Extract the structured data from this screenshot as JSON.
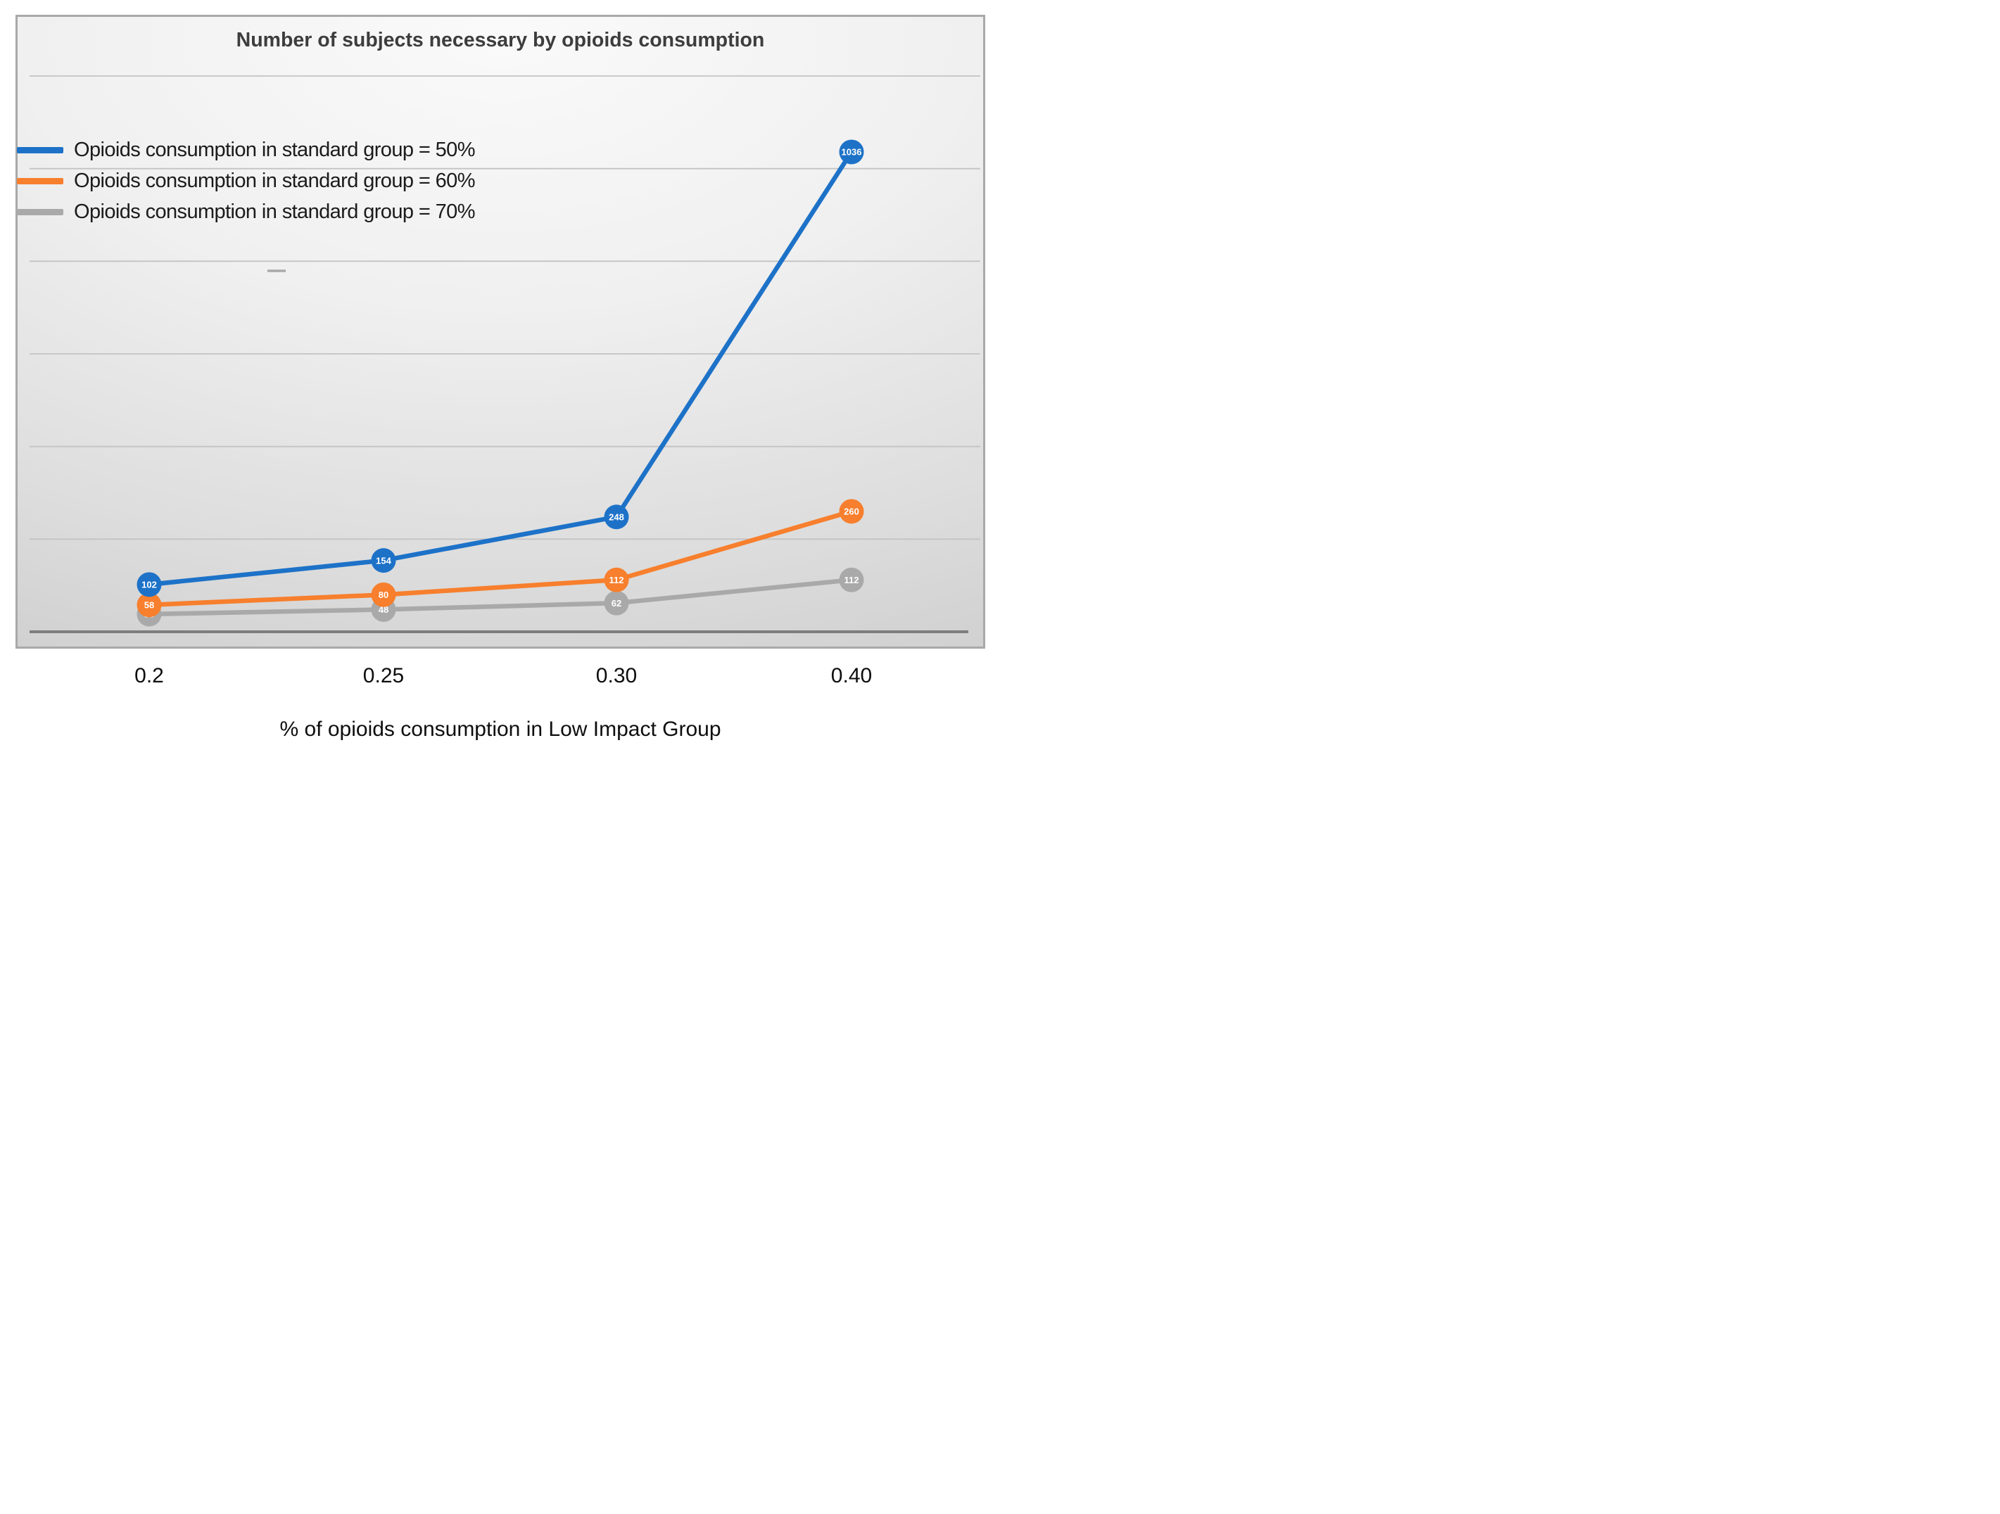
{
  "chart_data": {
    "type": "line",
    "title": "Number of subjects necessary by opioids consumption",
    "xlabel": "% of opioids consumption in Low Impact Group",
    "ylabel": "",
    "categories": [
      "0.2",
      "0.25",
      "0.30",
      "0.40"
    ],
    "series": [
      {
        "name": "Opioids consumption in standard group = 50%",
        "color": "#1D72C8",
        "values": [
          102,
          154,
          248,
          1036
        ]
      },
      {
        "name": "Opioids consumption in standard group = 60%",
        "color": "#F77F2D",
        "values": [
          58,
          80,
          112,
          260
        ]
      },
      {
        "name": "Opioids consumption in standard group = 70%",
        "color": "#A9A9A9",
        "values": [
          38,
          48,
          62,
          112
        ]
      }
    ],
    "ylim": [
      0,
      1200
    ],
    "grid_step": 200,
    "grid": true,
    "y_axis_labels_shown": false,
    "data_labels": true,
    "data_label_color": "#FFFFFF",
    "legend_position": "top-left"
  },
  "style_colors": {
    "gridline": "#c3c3c3",
    "axis_line": "#7d7d7d",
    "box_border": "#a9a9a9",
    "title_text": "#3d3d3d",
    "tick_text": "#0e0e0e"
  }
}
